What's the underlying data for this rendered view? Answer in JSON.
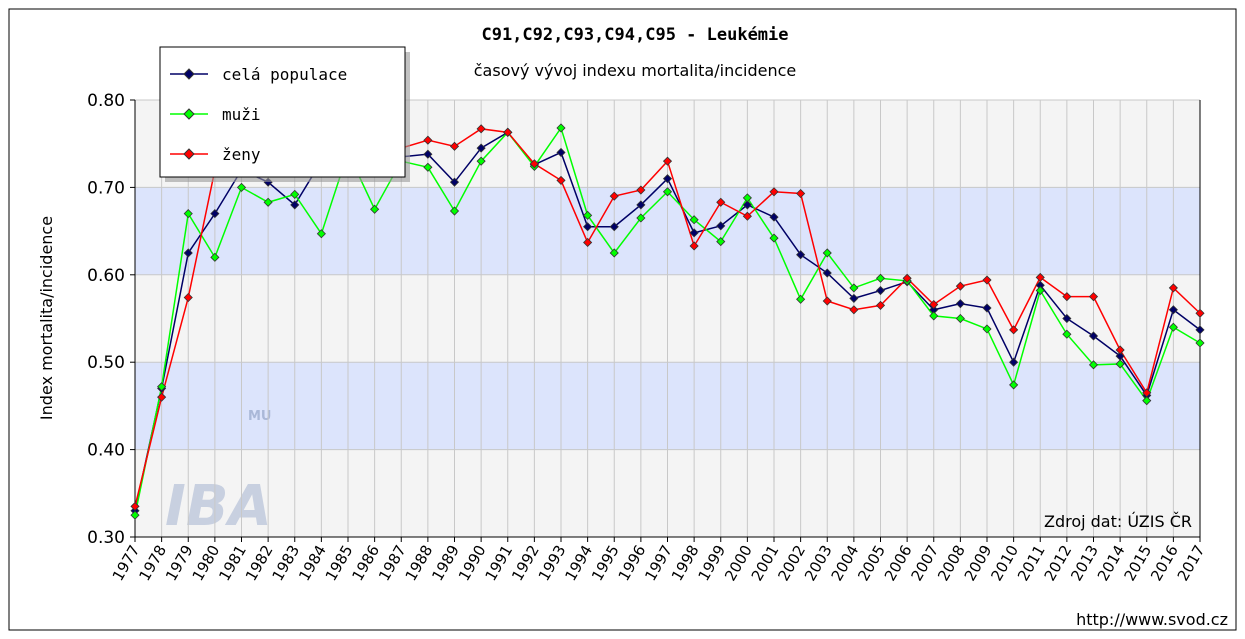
{
  "chart_data": {
    "type": "line",
    "title": "C91,C92,C93,C94,C95 - Leukémie",
    "subtitle": "časový vývoj indexu mortalita/incidence",
    "y_label": "Index mortalita/incidence",
    "source": "Zdroj dat: ÚZIS ČR",
    "url": "http://www.svod.cz",
    "watermark": [
      "MU",
      "IBA"
    ],
    "categories": [
      "1977",
      "1978",
      "1979",
      "1980",
      "1981",
      "1982",
      "1983",
      "1984",
      "1985",
      "1986",
      "1987",
      "1988",
      "1989",
      "1990",
      "1991",
      "1992",
      "1993",
      "1994",
      "1995",
      "1996",
      "1997",
      "1998",
      "1999",
      "2000",
      "2001",
      "2002",
      "2003",
      "2004",
      "2005",
      "2006",
      "2007",
      "2008",
      "2009",
      "2010",
      "2011",
      "2012",
      "2013",
      "2014",
      "2015",
      "2016",
      "2017"
    ],
    "series": [
      {
        "name": "celá populace",
        "color": "#000066",
        "values": [
          0.33,
          0.47,
          0.625,
          0.67,
          0.72,
          0.706,
          0.68,
          0.73,
          0.74,
          0.74,
          0.735,
          0.738,
          0.706,
          0.745,
          0.763,
          0.726,
          0.74,
          0.655,
          0.655,
          0.68,
          0.71,
          0.648,
          0.656,
          0.68,
          0.666,
          0.623,
          0.602,
          0.573,
          0.582,
          0.592,
          0.56,
          0.567,
          0.562,
          0.5,
          0.588,
          0.55,
          0.53,
          0.507,
          0.462,
          0.56,
          0.537
        ]
      },
      {
        "name": "muži",
        "color": "#00ff00",
        "values": [
          0.325,
          0.472,
          0.67,
          0.62,
          0.7,
          0.683,
          0.692,
          0.647,
          0.74,
          0.675,
          0.73,
          0.723,
          0.673,
          0.73,
          0.763,
          0.724,
          0.768,
          0.668,
          0.625,
          0.665,
          0.695,
          0.663,
          0.638,
          0.688,
          0.642,
          0.572,
          0.625,
          0.585,
          0.596,
          0.593,
          0.553,
          0.55,
          0.538,
          0.474,
          0.582,
          0.532,
          0.497,
          0.498,
          0.456,
          0.54,
          0.522
        ]
      },
      {
        "name": "ženy",
        "color": "#ff0000",
        "values": [
          0.335,
          0.46,
          0.574,
          0.72,
          0.76,
          0.76,
          0.75,
          0.76,
          0.76,
          0.76,
          0.745,
          0.754,
          0.747,
          0.767,
          0.763,
          0.727,
          0.708,
          0.637,
          0.69,
          0.697,
          0.73,
          0.633,
          0.683,
          0.667,
          0.695,
          0.693,
          0.57,
          0.56,
          0.565,
          0.596,
          0.566,
          0.587,
          0.594,
          0.537,
          0.597,
          0.575,
          0.575,
          0.514,
          0.465,
          0.585,
          0.556
        ]
      }
    ],
    "ylim": [
      0.3,
      0.8
    ],
    "yticks": [
      {
        "value": 0.3,
        "label": "0.30"
      },
      {
        "value": 0.4,
        "label": "0.40"
      },
      {
        "value": 0.5,
        "label": "0.50"
      },
      {
        "value": 0.6,
        "label": "0.60"
      },
      {
        "value": 0.7,
        "label": "0.70"
      },
      {
        "value": 0.8,
        "label": "0.80"
      }
    ],
    "grid": true,
    "legend": "top-left"
  }
}
